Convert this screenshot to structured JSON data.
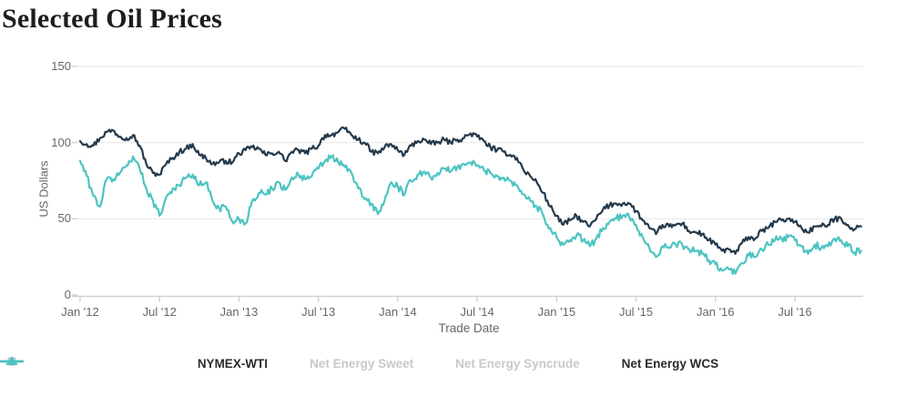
{
  "title": "Selected Oil Prices",
  "colors": {
    "navy": "#24394b",
    "teal": "#4cc4c2",
    "disabled": "#c9c9c9",
    "enabled_label": "#2b2b2b",
    "grid": "#e7e7e7",
    "axis": "#c9d2dc",
    "tick_label": "#62686f",
    "title_color": "#1d1d1d",
    "background": "#ffffff"
  },
  "chart_data": {
    "type": "line",
    "title": "Selected Oil Prices",
    "xlabel": "Trade Date",
    "ylabel": "US Dollars",
    "ylim": [
      0,
      150
    ],
    "yticks": [
      0,
      50,
      100,
      150
    ],
    "grid": "horizontal",
    "legend_position": "bottom",
    "x_start": "2012-01",
    "x_step_months": 0.5,
    "x_end": "2016-12",
    "xticks": [
      {
        "label": "Jan '12",
        "month": 0
      },
      {
        "label": "Jul '12",
        "month": 6
      },
      {
        "label": "Jan '13",
        "month": 12
      },
      {
        "label": "Jul '13",
        "month": 18
      },
      {
        "label": "Jan '14",
        "month": 24
      },
      {
        "label": "Jul '14",
        "month": 30
      },
      {
        "label": "Jan '15",
        "month": 36
      },
      {
        "label": "Jul '15",
        "month": 42
      },
      {
        "label": "Jan '16",
        "month": 48
      },
      {
        "label": "Jul '16",
        "month": 54
      }
    ],
    "series": [
      {
        "name": "NYMEX-WTI",
        "color": "#24394b",
        "marker": "circle",
        "marker_line": true,
        "enabled": true,
        "volatility": 1.8,
        "values": [
          101,
          99,
          98,
          103,
          107,
          108,
          104,
          103,
          105,
          98,
          86,
          80,
          79,
          86,
          90,
          94,
          96,
          99,
          92,
          90,
          86,
          87,
          88,
          87,
          93,
          95,
          97,
          96,
          92,
          93,
          94,
          88,
          94,
          95,
          93,
          96,
          98,
          105,
          105,
          107,
          109,
          105,
          102,
          100,
          94,
          93,
          97,
          99,
          95,
          92,
          98,
          101,
          102,
          99,
          100,
          102,
          100,
          102,
          103,
          106,
          104,
          101,
          97,
          95,
          94,
          92,
          90,
          82,
          78,
          74,
          67,
          58,
          52,
          46,
          49,
          52,
          48,
          45,
          50,
          56,
          59,
          60,
          60,
          60,
          55,
          49,
          44,
          40,
          46,
          45,
          46,
          47,
          42,
          41,
          40,
          36,
          33,
          29,
          30,
          27,
          34,
          38,
          37,
          42,
          44,
          48,
          49,
          50,
          48,
          44,
          41,
          45,
          45,
          46,
          50,
          50,
          46,
          43,
          45
        ]
      },
      {
        "name": "Net Energy Sweet",
        "color": "#c9c9c9",
        "marker": "diamond",
        "marker_line": false,
        "enabled": false,
        "volatility": 0,
        "values": []
      },
      {
        "name": "Net Energy Syncrude",
        "color": "#c9c9c9",
        "marker": "square",
        "marker_line": true,
        "enabled": false,
        "volatility": 0,
        "values": []
      },
      {
        "name": "Net Energy WCS",
        "color": "#4cc4c2",
        "marker": "triangle",
        "marker_line": true,
        "enabled": true,
        "volatility": 2.4,
        "values": [
          88,
          78,
          65,
          58,
          76,
          76,
          80,
          85,
          91,
          83,
          70,
          62,
          52,
          64,
          70,
          72,
          77,
          79,
          72,
          74,
          62,
          57,
          58,
          48,
          50,
          47,
          62,
          67,
          66,
          70,
          74,
          69,
          77,
          79,
          76,
          78,
          83,
          88,
          91,
          87,
          84,
          80,
          70,
          63,
          60,
          53,
          62,
          74,
          71,
          66,
          75,
          79,
          81,
          77,
          80,
          83,
          81,
          84,
          86,
          87,
          85,
          82,
          80,
          78,
          77,
          75,
          72,
          66,
          62,
          58,
          52,
          44,
          38,
          33,
          36,
          39,
          36,
          32,
          37,
          44,
          48,
          50,
          52,
          51,
          46,
          38,
          31,
          25,
          32,
          31,
          33,
          33,
          30,
          29,
          27,
          23,
          20,
          16,
          17,
          14,
          21,
          26,
          25,
          30,
          33,
          36,
          37,
          38,
          36,
          32,
          27,
          33,
          31,
          32,
          37,
          36,
          32,
          28,
          29
        ]
      }
    ]
  }
}
